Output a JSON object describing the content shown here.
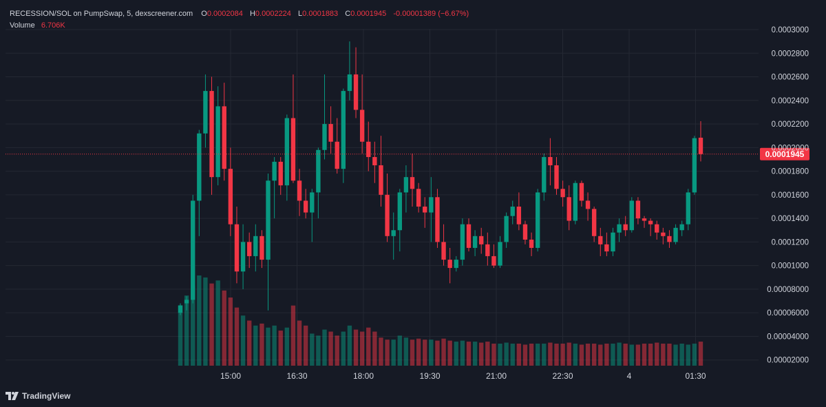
{
  "header": {
    "symbol_line": "RECESSION/SOL on PumpSwap, 5, dexscreener.com",
    "o_label": "O",
    "o_value": "0.0002084",
    "h_label": "H",
    "h_value": "0.0002224",
    "l_label": "L",
    "l_value": "0.0001883",
    "c_label": "C",
    "c_value": "0.0001945",
    "change": "-0.00001389 (−6.67%)",
    "volume_label": "Volume",
    "volume_value": "6.706K"
  },
  "footer": {
    "brand": "TradingView",
    "logo_icon": "tradingview-logo-icon"
  },
  "colors": {
    "up": "#089981",
    "down": "#f23645",
    "grid": "#242833",
    "text": "#d1d4dc",
    "background": "#161a25"
  },
  "chart_data": {
    "type": "candlestick",
    "interval": "5",
    "price_axis_ticks": [
      "0.00002000",
      "0.00004000",
      "0.00006000",
      "0.00008000",
      "0.0001000",
      "0.0001200",
      "0.0001400",
      "0.0001600",
      "0.0001800",
      "0.0002000",
      "0.0002200",
      "0.0002400",
      "0.0002600",
      "0.0002800",
      "0.0003000"
    ],
    "time_axis_ticks": [
      "15:00",
      "16:30",
      "18:00",
      "19:30",
      "21:00",
      "22:30",
      "4",
      "01:30"
    ],
    "ylim": [
      1.75e-05,
      0.0003
    ],
    "last_price": 0.0001945,
    "last_price_label": "0.0001945",
    "candles": [
      {
        "o": 6e-05,
        "h": 6.8e-05,
        "l": 5.8e-05,
        "c": 6.6e-05
      },
      {
        "o": 6.8e-05,
        "h": 7.4e-05,
        "l": 6.2e-05,
        "c": 7.1e-05
      },
      {
        "o": 7.1e-05,
        "h": 0.00016,
        "l": 6.8e-05,
        "c": 0.000155
      },
      {
        "o": 0.000155,
        "h": 0.000215,
        "l": 0.000125,
        "c": 0.000212
      },
      {
        "o": 0.000212,
        "h": 0.000262,
        "l": 0.0002,
        "c": 0.000248
      },
      {
        "o": 0.000248,
        "h": 0.00026,
        "l": 0.00016,
        "c": 0.000175
      },
      {
        "o": 0.000175,
        "h": 0.000252,
        "l": 0.000168,
        "c": 0.000235
      },
      {
        "o": 0.000235,
        "h": 0.000255,
        "l": 0.000172,
        "c": 0.000182
      },
      {
        "o": 0.000182,
        "h": 0.0002,
        "l": 0.000125,
        "c": 0.000135
      },
      {
        "o": 0.000135,
        "h": 0.00015,
        "l": 8.5e-05,
        "c": 9.5e-05
      },
      {
        "o": 9.5e-05,
        "h": 0.000135,
        "l": 8e-05,
        "c": 0.00012
      },
      {
        "o": 0.00012,
        "h": 0.000128,
        "l": 9.8e-05,
        "c": 0.000108
      },
      {
        "o": 0.000108,
        "h": 0.000135,
        "l": 9.5e-05,
        "c": 0.000125
      },
      {
        "o": 0.000125,
        "h": 0.00013,
        "l": 9.8e-05,
        "c": 0.000105
      },
      {
        "o": 0.000105,
        "h": 0.000178,
        "l": 6.2e-05,
        "c": 0.000172
      },
      {
        "o": 0.000172,
        "h": 0.000192,
        "l": 0.00014,
        "c": 0.000188
      },
      {
        "o": 0.000188,
        "h": 0.000192,
        "l": 0.00016,
        "c": 0.000168
      },
      {
        "o": 0.000168,
        "h": 0.000228,
        "l": 0.000155,
        "c": 0.000225
      },
      {
        "o": 0.000225,
        "h": 0.000262,
        "l": 0.00017,
        "c": 0.000172
      },
      {
        "o": 0.000172,
        "h": 0.000182,
        "l": 0.000142,
        "c": 0.000155
      },
      {
        "o": 0.000155,
        "h": 0.000165,
        "l": 0.00014,
        "c": 0.000145
      },
      {
        "o": 0.000145,
        "h": 0.000165,
        "l": 0.00012,
        "c": 0.000162
      },
      {
        "o": 0.000162,
        "h": 0.0002,
        "l": 0.00014,
        "c": 0.000198
      },
      {
        "o": 0.000198,
        "h": 0.000262,
        "l": 0.00019,
        "c": 0.00022
      },
      {
        "o": 0.00022,
        "h": 0.000235,
        "l": 0.000195,
        "c": 0.000205
      },
      {
        "o": 0.000205,
        "h": 0.000225,
        "l": 0.000178,
        "c": 0.000182
      },
      {
        "o": 0.000182,
        "h": 0.00025,
        "l": 0.00017,
        "c": 0.000248
      },
      {
        "o": 0.000248,
        "h": 0.00029,
        "l": 0.00024,
        "c": 0.000262
      },
      {
        "o": 0.000262,
        "h": 0.000285,
        "l": 0.000225,
        "c": 0.000232
      },
      {
        "o": 0.000232,
        "h": 0.000262,
        "l": 0.000195,
        "c": 0.000205
      },
      {
        "o": 0.000205,
        "h": 0.000222,
        "l": 0.00018,
        "c": 0.000192
      },
      {
        "o": 0.000192,
        "h": 0.000205,
        "l": 0.00017,
        "c": 0.000185
      },
      {
        "o": 0.000185,
        "h": 0.00021,
        "l": 0.00015,
        "c": 0.00016
      },
      {
        "o": 0.00016,
        "h": 0.000178,
        "l": 0.00012,
        "c": 0.000125
      },
      {
        "o": 0.000125,
        "h": 0.000145,
        "l": 0.000105,
        "c": 0.00013
      },
      {
        "o": 0.00013,
        "h": 0.000165,
        "l": 0.000112,
        "c": 0.000162
      },
      {
        "o": 0.000162,
        "h": 0.000185,
        "l": 0.000145,
        "c": 0.000175
      },
      {
        "o": 0.000175,
        "h": 0.000195,
        "l": 0.00015,
        "c": 0.000165
      },
      {
        "o": 0.000165,
        "h": 0.00017,
        "l": 0.000145,
        "c": 0.00015
      },
      {
        "o": 0.00015,
        "h": 0.000158,
        "l": 0.000132,
        "c": 0.000145
      },
      {
        "o": 0.000145,
        "h": 0.000175,
        "l": 0.00012,
        "c": 0.000158
      },
      {
        "o": 0.000158,
        "h": 0.000165,
        "l": 0.000115,
        "c": 0.00012
      },
      {
        "o": 0.00012,
        "h": 0.000135,
        "l": 0.0001,
        "c": 0.000105
      },
      {
        "o": 0.000105,
        "h": 0.000115,
        "l": 8.5e-05,
        "c": 9.8e-05
      },
      {
        "o": 9.8e-05,
        "h": 0.000108,
        "l": 9.5e-05,
        "c": 0.000105
      },
      {
        "o": 0.000105,
        "h": 0.00014,
        "l": 0.0001,
        "c": 0.000135
      },
      {
        "o": 0.000135,
        "h": 0.00014,
        "l": 0.000112,
        "c": 0.000115
      },
      {
        "o": 0.000115,
        "h": 0.00013,
        "l": 0.000108,
        "c": 0.000125
      },
      {
        "o": 0.000125,
        "h": 0.000132,
        "l": 0.00011,
        "c": 0.000118
      },
      {
        "o": 0.000118,
        "h": 0.000128,
        "l": 0.0001,
        "c": 0.000108
      },
      {
        "o": 0.000108,
        "h": 0.000118,
        "l": 9.8e-05,
        "c": 0.0001
      },
      {
        "o": 0.0001,
        "h": 0.000125,
        "l": 9.8e-05,
        "c": 0.00012
      },
      {
        "o": 0.00012,
        "h": 0.000145,
        "l": 0.000115,
        "c": 0.000142
      },
      {
        "o": 0.000142,
        "h": 0.000155,
        "l": 0.000135,
        "c": 0.00015
      },
      {
        "o": 0.00015,
        "h": 0.000162,
        "l": 0.00013,
        "c": 0.000135
      },
      {
        "o": 0.000135,
        "h": 0.000138,
        "l": 0.000118,
        "c": 0.000122
      },
      {
        "o": 0.000122,
        "h": 0.000128,
        "l": 0.000108,
        "c": 0.000115
      },
      {
        "o": 0.000115,
        "h": 0.000165,
        "l": 0.000112,
        "c": 0.000162
      },
      {
        "o": 0.000162,
        "h": 0.000195,
        "l": 0.000155,
        "c": 0.000192
      },
      {
        "o": 0.000192,
        "h": 0.000208,
        "l": 0.000168,
        "c": 0.000185
      },
      {
        "o": 0.000185,
        "h": 0.000192,
        "l": 0.00016,
        "c": 0.000165
      },
      {
        "o": 0.000165,
        "h": 0.000172,
        "l": 0.00015,
        "c": 0.000158
      },
      {
        "o": 0.000158,
        "h": 0.000168,
        "l": 0.00013,
        "c": 0.000138
      },
      {
        "o": 0.000138,
        "h": 0.000172,
        "l": 0.000135,
        "c": 0.00017
      },
      {
        "o": 0.00017,
        "h": 0.000172,
        "l": 0.00015,
        "c": 0.000155
      },
      {
        "o": 0.000155,
        "h": 0.000162,
        "l": 0.000138,
        "c": 0.000148
      },
      {
        "o": 0.000148,
        "h": 0.00015,
        "l": 0.00012,
        "c": 0.000125
      },
      {
        "o": 0.000125,
        "h": 0.000132,
        "l": 0.000108,
        "c": 0.000118
      },
      {
        "o": 0.000118,
        "h": 0.000128,
        "l": 0.000108,
        "c": 0.000112
      },
      {
        "o": 0.000112,
        "h": 0.000132,
        "l": 0.000108,
        "c": 0.000128
      },
      {
        "o": 0.000128,
        "h": 0.00014,
        "l": 0.00012,
        "c": 0.000135
      },
      {
        "o": 0.000135,
        "h": 0.000142,
        "l": 0.000125,
        "c": 0.00013
      },
      {
        "o": 0.00013,
        "h": 0.000158,
        "l": 0.000128,
        "c": 0.000155
      },
      {
        "o": 0.000155,
        "h": 0.000158,
        "l": 0.000135,
        "c": 0.00014
      },
      {
        "o": 0.00014,
        "h": 0.000142,
        "l": 0.000132,
        "c": 0.000138
      },
      {
        "o": 0.000138,
        "h": 0.00014,
        "l": 0.000125,
        "c": 0.000135
      },
      {
        "o": 0.000135,
        "h": 0.000138,
        "l": 0.000122,
        "c": 0.000128
      },
      {
        "o": 0.000128,
        "h": 0.000132,
        "l": 0.000118,
        "c": 0.000125
      },
      {
        "o": 0.000125,
        "h": 0.00013,
        "l": 0.000115,
        "c": 0.00012
      },
      {
        "o": 0.00012,
        "h": 0.000135,
        "l": 0.000118,
        "c": 0.000132
      },
      {
        "o": 0.00013,
        "h": 0.000138,
        "l": 0.000125,
        "c": 0.000135
      },
      {
        "o": 0.000135,
        "h": 0.000165,
        "l": 0.00013,
        "c": 0.000162
      },
      {
        "o": 0.000162,
        "h": 0.00021,
        "l": 0.00016,
        "c": 0.000208
      },
      {
        "o": 0.0002084,
        "h": 0.0002224,
        "l": 0.0001883,
        "c": 0.0001945
      }
    ],
    "volumes": [
      6.05e-05,
      7e-05,
      8e-05,
      9e-05,
      8.8e-05,
      8.2e-05,
      8.5e-05,
      7.5e-05,
      6.8e-05,
      5.8e-05,
      5e-05,
      4.5e-05,
      4e-05,
      4.2e-05,
      3.8e-05,
      4e-05,
      3.5e-05,
      3.8e-05,
      6e-05,
      4.5e-05,
      4e-05,
      3.2e-05,
      3e-05,
      3.6e-05,
      3.4e-05,
      3e-05,
      3.4e-05,
      4e-05,
      3.6e-05,
      3.4e-05,
      3.8e-05,
      3.4e-05,
      2.8e-05,
      2.6e-05,
      2.6e-05,
      3e-05,
      2.8e-05,
      2.6e-05,
      2.7e-05,
      2.6e-05,
      2.6e-05,
      2.5e-05,
      2.7e-05,
      2.5e-05,
      2.4e-05,
      2.5e-05,
      2.4e-05,
      2.4e-05,
      2.3e-05,
      2.4e-05,
      2.2e-05,
      2.2e-05,
      2.3e-05,
      2.2e-05,
      2.2e-05,
      2.1e-05,
      2.2e-05,
      2.2e-05,
      2.2e-05,
      2.3e-05,
      2.2e-05,
      2.2e-05,
      2.3e-05,
      2.2e-05,
      2.1e-05,
      2.2e-05,
      2.2e-05,
      2.1e-05,
      2.2e-05,
      2.2e-05,
      2.3e-05,
      2.2e-05,
      2.1e-05,
      2.1e-05,
      2.2e-05,
      2.2e-05,
      2.3e-05,
      2.2e-05,
      2.2e-05,
      2.1e-05,
      2.2e-05,
      2.1e-05,
      2.2e-05,
      2.4e-05
    ]
  }
}
